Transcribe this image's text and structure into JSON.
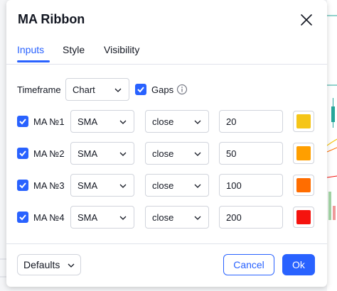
{
  "dialog": {
    "title": "MA Ribbon",
    "close_icon": "close-icon"
  },
  "tabs": [
    {
      "label": "Inputs",
      "active": true
    },
    {
      "label": "Style",
      "active": false
    },
    {
      "label": "Visibility",
      "active": false
    }
  ],
  "timeframe": {
    "label": "Timeframe",
    "value": "Chart",
    "gaps_label": "Gaps",
    "gaps_checked": true,
    "info_icon": "info-icon"
  },
  "ma_rows": [
    {
      "label": "MA №1",
      "checked": true,
      "type": "SMA",
      "source": "close",
      "length": "20",
      "color": "#f5c518"
    },
    {
      "label": "MA №2",
      "checked": true,
      "type": "SMA",
      "source": "close",
      "length": "50",
      "color": "#ff9f00"
    },
    {
      "label": "MA №3",
      "checked": true,
      "type": "SMA",
      "source": "close",
      "length": "100",
      "color": "#ff6d00"
    },
    {
      "label": "MA №4",
      "checked": true,
      "type": "SMA",
      "source": "close",
      "length": "200",
      "color": "#f5130e"
    }
  ],
  "footer": {
    "defaults_label": "Defaults",
    "cancel_label": "Cancel",
    "ok_label": "Ok"
  },
  "colors": {
    "accent": "#2962ff",
    "border": "#d1d4dc"
  }
}
